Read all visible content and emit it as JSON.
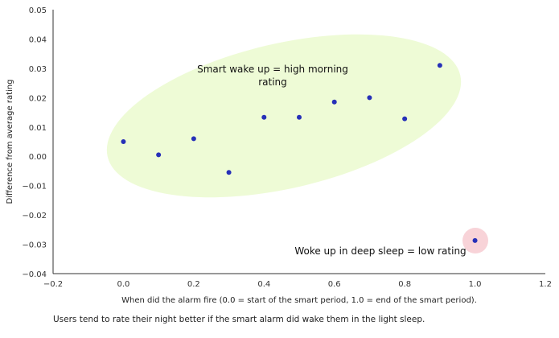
{
  "chart_data": {
    "type": "scatter",
    "x": [
      0.0,
      0.1,
      0.2,
      0.3,
      0.4,
      0.5,
      0.6,
      0.7,
      0.8,
      0.9,
      1.0
    ],
    "y": [
      0.005,
      0.0005,
      0.006,
      -0.0055,
      0.0133,
      0.0133,
      0.0185,
      0.02,
      0.0128,
      0.031,
      -0.0287
    ],
    "xlabel": "When did the alarm fire (0.0 = start of the smart period, 1.0 = end of the smart period).",
    "ylabel": "Difference from average rating",
    "xlim": [
      -0.2,
      1.2
    ],
    "ylim": [
      -0.04,
      0.05
    ],
    "xticks": [
      "−0.2",
      "0.0",
      "0.2",
      "0.4",
      "0.6",
      "0.8",
      "1.0",
      "1.2"
    ],
    "yticks": [
      "0.05",
      "0.04",
      "0.03",
      "0.02",
      "0.01",
      "0.00",
      "−0.01",
      "−0.02",
      "−0.03",
      "−0.04"
    ],
    "grid": false,
    "point_color": "#2630b8",
    "annotations": [
      {
        "text_line1": "Smart wake up = high morning",
        "text_line2": "rating",
        "highlight_color": "#eefbd6"
      },
      {
        "text": "Woke up in deep sleep = low rating",
        "highlight_color": "#f8d3d8"
      }
    ]
  },
  "caption": "Users tend to rate their night better if the smart alarm did wake them in the light sleep."
}
